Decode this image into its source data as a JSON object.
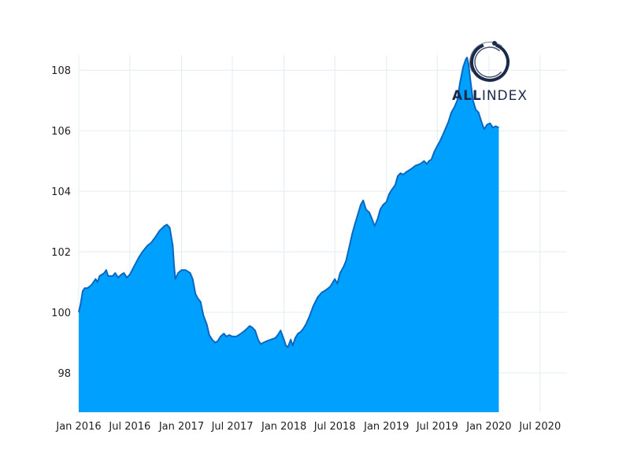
{
  "logo": {
    "text_bold": "ALL",
    "text_light": "INDEX",
    "icon": "enso-circle-icon",
    "color": "#1b2a4a"
  },
  "chart_data": {
    "type": "area",
    "title": "",
    "xlabel": "",
    "ylabel": "",
    "xlim": [
      "2016-01-01",
      "2020-10-05"
    ],
    "ylim": [
      96.7,
      108.5
    ],
    "y_ticks": [
      98,
      100,
      102,
      104,
      106,
      108
    ],
    "x_ticks": [
      {
        "date": "2016-01-01",
        "label": "Jan 2016"
      },
      {
        "date": "2016-07-01",
        "label": "Jul 2016"
      },
      {
        "date": "2017-01-01",
        "label": "Jan 2017"
      },
      {
        "date": "2017-07-01",
        "label": "Jul 2017"
      },
      {
        "date": "2018-01-01",
        "label": "Jan 2018"
      },
      {
        "date": "2018-07-01",
        "label": "Jul 2018"
      },
      {
        "date": "2019-01-01",
        "label": "Jan 2019"
      },
      {
        "date": "2019-07-01",
        "label": "Jul 2019"
      },
      {
        "date": "2020-01-01",
        "label": "Jan 2020"
      },
      {
        "date": "2020-07-01",
        "label": "Jul 2020"
      }
    ],
    "grid": true,
    "fill_color": "#00a0ff",
    "line_color": "#0a68c0",
    "grid_color": "#e3ecf2",
    "series": [
      {
        "points": [
          [
            "2016-01-01",
            100.0
          ],
          [
            "2016-01-08",
            100.3
          ],
          [
            "2016-01-15",
            100.7
          ],
          [
            "2016-01-22",
            100.8
          ],
          [
            "2016-02-01",
            100.8
          ],
          [
            "2016-02-15",
            100.9
          ],
          [
            "2016-03-01",
            101.1
          ],
          [
            "2016-03-08",
            101.0
          ],
          [
            "2016-03-15",
            101.2
          ],
          [
            "2016-04-01",
            101.3
          ],
          [
            "2016-04-08",
            101.4
          ],
          [
            "2016-04-15",
            101.2
          ],
          [
            "2016-05-01",
            101.2
          ],
          [
            "2016-05-10",
            101.3
          ],
          [
            "2016-05-20",
            101.15
          ],
          [
            "2016-06-01",
            101.25
          ],
          [
            "2016-06-10",
            101.3
          ],
          [
            "2016-06-20",
            101.15
          ],
          [
            "2016-07-01",
            101.25
          ],
          [
            "2016-07-15",
            101.5
          ],
          [
            "2016-08-01",
            101.8
          ],
          [
            "2016-08-15",
            102.0
          ],
          [
            "2016-09-01",
            102.2
          ],
          [
            "2016-09-15",
            102.3
          ],
          [
            "2016-10-01",
            102.5
          ],
          [
            "2016-10-15",
            102.7
          ],
          [
            "2016-11-01",
            102.85
          ],
          [
            "2016-11-10",
            102.9
          ],
          [
            "2016-11-20",
            102.8
          ],
          [
            "2016-12-01",
            102.2
          ],
          [
            "2016-12-05",
            101.6
          ],
          [
            "2016-12-10",
            101.1
          ],
          [
            "2016-12-20",
            101.3
          ],
          [
            "2017-01-01",
            101.4
          ],
          [
            "2017-01-15",
            101.4
          ],
          [
            "2017-02-01",
            101.3
          ],
          [
            "2017-02-10",
            101.1
          ],
          [
            "2017-02-20",
            100.6
          ],
          [
            "2017-03-01",
            100.45
          ],
          [
            "2017-03-10",
            100.35
          ],
          [
            "2017-03-20",
            99.9
          ],
          [
            "2017-04-01",
            99.6
          ],
          [
            "2017-04-10",
            99.25
          ],
          [
            "2017-04-20",
            99.1
          ],
          [
            "2017-05-01",
            99.0
          ],
          [
            "2017-05-10",
            99.05
          ],
          [
            "2017-05-20",
            99.2
          ],
          [
            "2017-06-01",
            99.3
          ],
          [
            "2017-06-10",
            99.2
          ],
          [
            "2017-06-20",
            99.25
          ],
          [
            "2017-07-01",
            99.2
          ],
          [
            "2017-07-15",
            99.2
          ],
          [
            "2017-08-01",
            99.3
          ],
          [
            "2017-08-15",
            99.4
          ],
          [
            "2017-09-01",
            99.55
          ],
          [
            "2017-09-10",
            99.5
          ],
          [
            "2017-09-20",
            99.4
          ],
          [
            "2017-10-01",
            99.1
          ],
          [
            "2017-10-10",
            98.95
          ],
          [
            "2017-10-20",
            99.0
          ],
          [
            "2017-11-01",
            99.05
          ],
          [
            "2017-11-15",
            99.1
          ],
          [
            "2017-12-01",
            99.15
          ],
          [
            "2017-12-10",
            99.25
          ],
          [
            "2017-12-20",
            99.4
          ],
          [
            "2018-01-01",
            99.1
          ],
          [
            "2018-01-08",
            98.9
          ],
          [
            "2018-01-15",
            98.85
          ],
          [
            "2018-01-25",
            99.1
          ],
          [
            "2018-02-01",
            98.9
          ],
          [
            "2018-02-10",
            99.15
          ],
          [
            "2018-02-20",
            99.3
          ],
          [
            "2018-03-01",
            99.35
          ],
          [
            "2018-03-10",
            99.45
          ],
          [
            "2018-03-20",
            99.6
          ],
          [
            "2018-04-01",
            99.85
          ],
          [
            "2018-04-15",
            100.2
          ],
          [
            "2018-05-01",
            100.5
          ],
          [
            "2018-05-15",
            100.65
          ],
          [
            "2018-06-01",
            100.75
          ],
          [
            "2018-06-15",
            100.85
          ],
          [
            "2018-07-01",
            101.1
          ],
          [
            "2018-07-10",
            100.95
          ],
          [
            "2018-07-20",
            101.3
          ],
          [
            "2018-08-01",
            101.5
          ],
          [
            "2018-08-10",
            101.7
          ],
          [
            "2018-08-20",
            102.1
          ],
          [
            "2018-09-01",
            102.6
          ],
          [
            "2018-09-10",
            102.9
          ],
          [
            "2018-09-20",
            103.2
          ],
          [
            "2018-10-01",
            103.55
          ],
          [
            "2018-10-10",
            103.7
          ],
          [
            "2018-10-20",
            103.4
          ],
          [
            "2018-11-01",
            103.3
          ],
          [
            "2018-11-10",
            103.1
          ],
          [
            "2018-11-20",
            102.85
          ],
          [
            "2018-12-01",
            103.1
          ],
          [
            "2018-12-10",
            103.4
          ],
          [
            "2018-12-20",
            103.55
          ],
          [
            "2019-01-01",
            103.65
          ],
          [
            "2019-01-10",
            103.9
          ],
          [
            "2019-01-20",
            104.05
          ],
          [
            "2019-02-01",
            104.2
          ],
          [
            "2019-02-10",
            104.5
          ],
          [
            "2019-02-20",
            104.6
          ],
          [
            "2019-03-01",
            104.55
          ],
          [
            "2019-03-15",
            104.65
          ],
          [
            "2019-04-01",
            104.75
          ],
          [
            "2019-04-15",
            104.85
          ],
          [
            "2019-05-01",
            104.9
          ],
          [
            "2019-05-15",
            105.0
          ],
          [
            "2019-05-25",
            104.9
          ],
          [
            "2019-06-01",
            105.0
          ],
          [
            "2019-06-10",
            105.05
          ],
          [
            "2019-06-20",
            105.3
          ],
          [
            "2019-07-01",
            105.5
          ],
          [
            "2019-07-10",
            105.65
          ],
          [
            "2019-07-20",
            105.85
          ],
          [
            "2019-08-01",
            106.1
          ],
          [
            "2019-08-10",
            106.3
          ],
          [
            "2019-08-20",
            106.6
          ],
          [
            "2019-09-01",
            106.8
          ],
          [
            "2019-09-10",
            107.0
          ],
          [
            "2019-09-20",
            107.6
          ],
          [
            "2019-10-01",
            108.1
          ],
          [
            "2019-10-10",
            108.35
          ],
          [
            "2019-10-15",
            108.42
          ],
          [
            "2019-10-20",
            108.2
          ],
          [
            "2019-10-28",
            107.6
          ],
          [
            "2019-11-05",
            107.0
          ],
          [
            "2019-11-15",
            106.7
          ],
          [
            "2019-11-25",
            106.6
          ],
          [
            "2019-12-05",
            106.3
          ],
          [
            "2019-12-15",
            106.05
          ],
          [
            "2019-12-25",
            106.2
          ],
          [
            "2020-01-05",
            106.25
          ],
          [
            "2020-01-15",
            106.1
          ],
          [
            "2020-01-25",
            106.15
          ],
          [
            "2020-02-05",
            106.1
          ]
        ]
      }
    ]
  }
}
